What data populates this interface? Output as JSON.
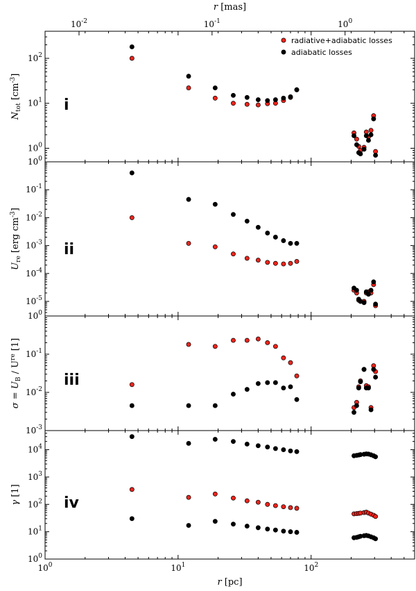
{
  "chart_data": {
    "type": "scatter",
    "x_scale": "log",
    "xlim": [
      1,
      600
    ],
    "xlabel_main": "r",
    "xlabel_unit": "[pc]",
    "xlabel_top_main": "r",
    "xlabel_top_unit": "[mas]",
    "x_ticks": [
      {
        "value": 1,
        "mantissa": "10",
        "exp": "0"
      },
      {
        "value": 10,
        "mantissa": "10",
        "exp": "1"
      },
      {
        "value": 100,
        "mantissa": "10",
        "exp": "2"
      }
    ],
    "top_ticks": [
      {
        "mas": 0.01,
        "mantissa": "10",
        "exp": "-2"
      },
      {
        "mas": 0.1,
        "mantissa": "10",
        "exp": "-1"
      },
      {
        "mas": 1.0,
        "mantissa": "10",
        "exp": "0"
      }
    ],
    "pc_per_mas": 180,
    "legend": [
      {
        "label": "radiative+adiabatic losses",
        "color": "#e8251d"
      },
      {
        "label": "adiabatic losses",
        "color": "#000000"
      }
    ],
    "x": [
      4.5,
      12,
      19,
      26,
      33,
      40,
      47,
      54,
      62,
      70,
      78,
      210,
      220,
      228,
      235,
      250,
      260,
      270,
      282,
      295,
      305
    ],
    "panels": [
      {
        "tag": "i",
        "ylabel": "N_tot [cm^-3]",
        "ylabel_main": "N",
        "ylabel_sub": "tot",
        "ylabel_unit": "[cm",
        "ylabel_exp": "-3",
        "ylabel_close": "]",
        "ylim": [
          0.5,
          400
        ],
        "y_ticks": [
          {
            "value": 1,
            "mantissa": "10",
            "exp": "0"
          },
          {
            "value": 10,
            "mantissa": "10",
            "exp": "1"
          },
          {
            "value": 100,
            "mantissa": "10",
            "exp": "2"
          }
        ],
        "series": [
          {
            "name": "radiative+adiabatic losses",
            "color": "#e8251d",
            "values": [
              100,
              22,
              13,
              10,
              9.5,
              9.2,
              9.8,
              10,
              11.5,
              13.5,
              20,
              2.2,
              1.6,
              1.1,
              0.9,
              1.05,
              2.3,
              1.8,
              2.5,
              5.3,
              0.85
            ]
          },
          {
            "name": "adiabatic losses",
            "color": "#000000",
            "values": [
              180,
              40,
              22,
              15,
              13.5,
              12,
              11.5,
              12,
              13,
              14,
              20,
              1.9,
              1.2,
              0.8,
              0.75,
              0.95,
              1.9,
              1.5,
              2.0,
              4.5,
              0.7
            ]
          }
        ]
      },
      {
        "tag": "ii",
        "ylabel": "U_re [erg cm^-3]",
        "ylabel_main": "U",
        "ylabel_sub": "re",
        "ylabel_unit": "[erg cm",
        "ylabel_exp": "-3",
        "ylabel_close": "]",
        "ylim": [
          3e-06,
          1
        ],
        "y_ticks": [
          {
            "value": 1e-05,
            "mantissa": "10",
            "exp": "-5"
          },
          {
            "value": 0.0001,
            "mantissa": "10",
            "exp": "-4"
          },
          {
            "value": 0.001,
            "mantissa": "10",
            "exp": "-3"
          },
          {
            "value": 0.01,
            "mantissa": "10",
            "exp": "-2"
          },
          {
            "value": 0.1,
            "mantissa": "10",
            "exp": "-1"
          },
          {
            "value": 1,
            "mantissa": "10",
            "exp": "0"
          }
        ],
        "series": [
          {
            "name": "radiative+adiabatic losses",
            "color": "#e8251d",
            "values": [
              0.01,
              0.0012,
              0.0009,
              0.0005,
              0.00035,
              0.0003,
              0.00025,
              0.00023,
              0.00022,
              0.00023,
              0.00027,
              2.5e-05,
              2e-05,
              1.1e-05,
              1e-05,
              1e-05,
              2e-05,
              2.2e-05,
              2e-05,
              4e-05,
              7e-06
            ]
          },
          {
            "name": "adiabatic losses",
            "color": "#000000",
            "values": [
              0.4,
              0.045,
              0.03,
              0.013,
              0.0075,
              0.0045,
              0.0028,
              0.002,
              0.0015,
              0.0012,
              0.0012,
              3e-05,
              2.5e-05,
              1.2e-05,
              1e-05,
              9e-06,
              2.2e-05,
              1.8e-05,
              2.5e-05,
              5e-05,
              8e-06
            ]
          }
        ]
      },
      {
        "tag": "iii",
        "ylabel": "sigma = U_B / U_re [1]",
        "ylabel_main": "σ = U",
        "ylabel_sub": "B",
        "ylabel_unit": "/ U",
        "ylabel_exp": "re",
        "ylabel_close": " [1]",
        "ylim": [
          0.001,
          1
        ],
        "y_ticks": [
          {
            "value": 0.001,
            "mantissa": "10",
            "exp": "-3"
          },
          {
            "value": 0.01,
            "mantissa": "10",
            "exp": "-2"
          },
          {
            "value": 0.1,
            "mantissa": "10",
            "exp": "-1"
          },
          {
            "value": 1,
            "mantissa": "10",
            "exp": "0"
          }
        ],
        "series": [
          {
            "name": "radiative+adiabatic losses",
            "color": "#e8251d",
            "values": [
              0.016,
              0.18,
              0.16,
              0.23,
              0.23,
              0.25,
              0.2,
              0.16,
              0.08,
              0.06,
              0.027,
              0.004,
              0.0055,
              0.014,
              0.02,
              0.04,
              0.015,
              0.014,
              0.004,
              0.05,
              0.035
            ]
          },
          {
            "name": "adiabatic losses",
            "color": "#000000",
            "values": [
              0.0045,
              0.0045,
              0.0045,
              0.009,
              0.012,
              0.017,
              0.018,
              0.018,
              0.013,
              0.014,
              0.0065,
              0.003,
              0.0045,
              0.013,
              0.019,
              0.04,
              0.013,
              0.013,
              0.0035,
              0.04,
              0.025
            ]
          }
        ]
      },
      {
        "tag": "iv",
        "ylabel": "gamma [1]",
        "ylabel_main": "γ",
        "ylabel_sub": "",
        "ylabel_unit": "[1]",
        "ylabel_exp": "",
        "ylabel_close": "",
        "ylim": [
          1,
          50000
        ],
        "y_ticks": [
          {
            "value": 1,
            "mantissa": "10",
            "exp": "0"
          },
          {
            "value": 10,
            "mantissa": "10",
            "exp": "1"
          },
          {
            "value": 100,
            "mantissa": "10",
            "exp": "2"
          },
          {
            "value": 1000,
            "mantissa": "10",
            "exp": "3"
          },
          {
            "value": 10000,
            "mantissa": "10",
            "exp": "4"
          }
        ],
        "series": [
          {
            "name": "adiabatic losses (gamma max)",
            "color": "#000000",
            "values": [
              30000,
              17000,
              24000,
              20000,
              16000,
              14000,
              12500,
              11000,
              10000,
              9000,
              8500,
              6000,
              6200,
              6400,
              6600,
              6800,
              7000,
              6900,
              6500,
              6000,
              5500
            ]
          },
          {
            "name": "radiative+adiabatic losses",
            "color": "#e8251d",
            "values": [
              350,
              180,
              240,
              170,
              135,
              120,
              100,
              90,
              82,
              76,
              72,
              45,
              46,
              47,
              48,
              50,
              52,
              48,
              44,
              40,
              36
            ]
          },
          {
            "name": "adiabatic losses (gamma min)",
            "color": "#000000",
            "values": [
              30,
              17,
              24,
              19,
              16,
              14,
              12.5,
              11.5,
              10.5,
              10,
              9.5,
              6,
              6.2,
              6.5,
              6.8,
              7.1,
              7.3,
              7,
              6.5,
              6,
              5.5
            ]
          }
        ]
      }
    ]
  }
}
